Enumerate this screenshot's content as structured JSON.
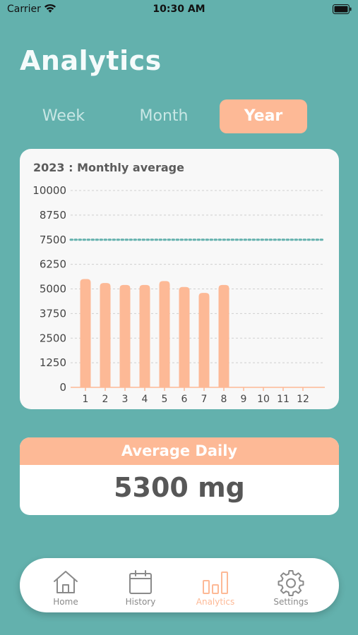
{
  "status_bar": {
    "carrier": "Carrier",
    "time": "10:30 AM"
  },
  "page": {
    "title": "Analytics"
  },
  "segment_tabs": [
    {
      "label": "Week",
      "selected": false
    },
    {
      "label": "Month",
      "selected": false
    },
    {
      "label": "Year",
      "selected": true
    }
  ],
  "chart_card": {
    "title": "2023 : Monthly average"
  },
  "chart_data": {
    "type": "bar",
    "title": "2023 : Monthly average",
    "categories": [
      "1",
      "2",
      "3",
      "4",
      "5",
      "6",
      "7",
      "8",
      "9",
      "10",
      "11",
      "12"
    ],
    "values": [
      5500,
      5300,
      5200,
      5200,
      5400,
      5100,
      4800,
      5200,
      null,
      null,
      null,
      null
    ],
    "ylim": [
      0,
      10000
    ],
    "yticks": [
      0,
      1250,
      2500,
      3750,
      5000,
      6250,
      7500,
      8750,
      10000
    ],
    "target_line": 7500,
    "grid": true,
    "bar_color": "#fdb996",
    "target_color": "#63b1ad"
  },
  "average_daily": {
    "label": "Average Daily",
    "value": "5300 mg"
  },
  "tab_bar": {
    "items": [
      {
        "label": "Home",
        "icon": "home-icon",
        "active": false
      },
      {
        "label": "History",
        "icon": "calendar-icon",
        "active": false
      },
      {
        "label": "Analytics",
        "icon": "bar-chart-icon",
        "active": true
      },
      {
        "label": "Settings",
        "icon": "gear-icon",
        "active": false
      }
    ]
  },
  "colors": {
    "background": "#63b1ad",
    "accent": "#fdb996",
    "card": "#f8f8f8"
  }
}
